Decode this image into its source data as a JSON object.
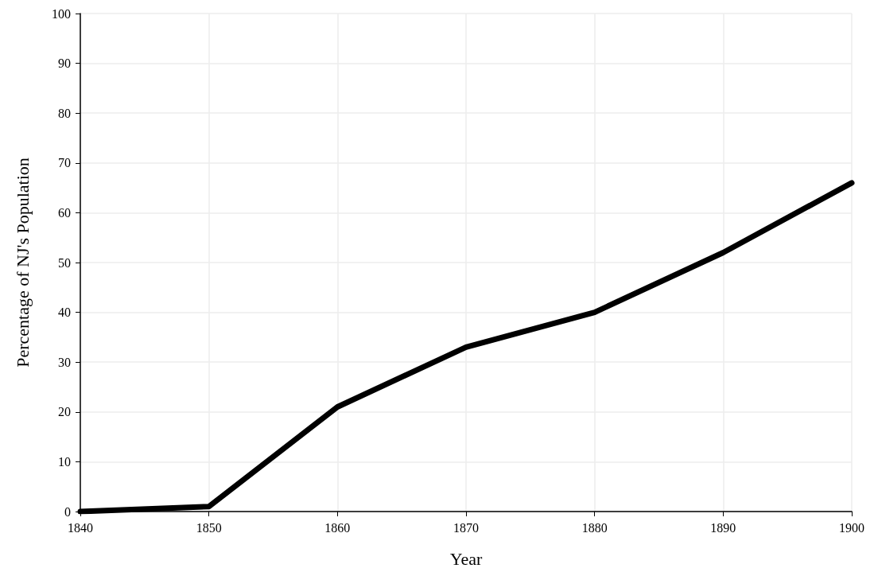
{
  "chart_data": {
    "type": "line",
    "xlabel": "Year",
    "ylabel": "Percentage of NJ's Population",
    "x": [
      1840,
      1850,
      1860,
      1870,
      1880,
      1890,
      1900
    ],
    "series": [
      {
        "color": "#000000",
        "values": [
          0,
          1,
          21,
          33,
          40,
          52,
          66
        ]
      }
    ],
    "xlim": [
      1840,
      1900
    ],
    "xticks": [
      1840,
      1850,
      1860,
      1870,
      1880,
      1890,
      1900
    ],
    "ylim": [
      0,
      100
    ],
    "yticks": [
      0,
      10,
      20,
      30,
      40,
      50,
      60,
      70,
      80,
      90,
      100
    ],
    "grid": true,
    "marker": "none",
    "line_style": "solid"
  }
}
